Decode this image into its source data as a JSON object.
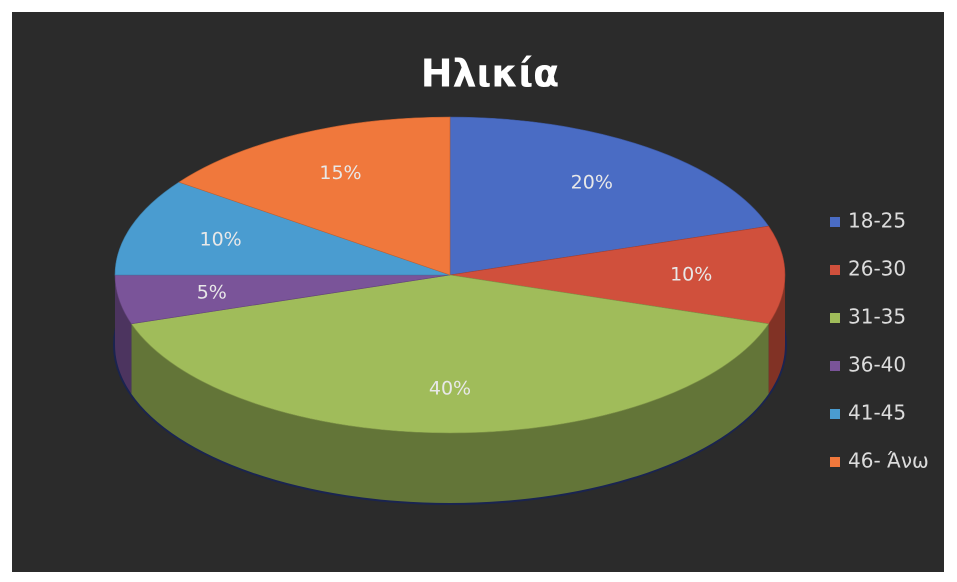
{
  "chart_data": {
    "type": "pie",
    "title": "Ηλικία",
    "categories": [
      "18-25",
      "26-30",
      "31-35",
      "36-40",
      "41-45",
      "46- Άνω"
    ],
    "values": [
      20,
      10,
      40,
      5,
      10,
      15
    ],
    "value_labels": [
      "20%",
      "10%",
      "40%",
      "5%",
      "10%",
      "15%"
    ],
    "colors": [
      "#4a6cc4",
      "#d0503c",
      "#a0bc5a",
      "#7a5499",
      "#4a9cd0",
      "#f0783c"
    ],
    "legend": "right"
  }
}
